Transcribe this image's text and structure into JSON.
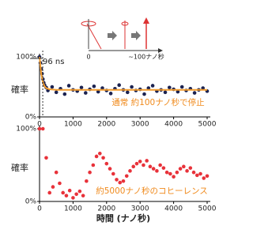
{
  "chart_data": [
    {
      "type": "scatter",
      "ylabel": "確率",
      "note": "通常 約100ナノ秒で停止",
      "note_color": "#f08a1c",
      "marker": {
        "value": 96,
        "label": "96 ns"
      },
      "inset": {
        "labels": [
          "0",
          "~100ナノ秒"
        ]
      },
      "xlim": [
        0,
        5000
      ],
      "xticks": [
        0,
        1000,
        2000,
        3000,
        4000,
        5000
      ],
      "ylim": [
        0,
        100
      ],
      "yticks": [
        {
          "value": 0,
          "label": "0%"
        },
        {
          "value": 100,
          "label": "100%"
        }
      ],
      "series": [
        {
          "type": "scatter",
          "color": "#1b2250",
          "x": [
            0,
            25,
            50,
            75,
            100,
            125,
            150,
            200,
            250,
            375,
            500,
            625,
            750,
            875,
            1000,
            1125,
            1250,
            1375,
            1500,
            1625,
            1750,
            1875,
            2000,
            2125,
            2250,
            2375,
            2500,
            2625,
            2750,
            2875,
            3000,
            3125,
            3250,
            3375,
            3500,
            3625,
            3750,
            3875,
            4000,
            4125,
            4250,
            4375,
            4500,
            4625,
            4750,
            4875,
            5000
          ],
          "values": [
            100,
            90,
            80,
            72,
            63,
            57,
            53,
            49,
            44,
            50,
            41,
            47,
            38,
            52,
            45,
            43,
            49,
            40,
            46,
            51,
            42,
            48,
            44,
            39,
            47,
            53,
            45,
            41,
            50,
            44,
            46,
            38,
            48,
            52,
            43,
            45,
            41,
            49,
            46,
            42,
            50,
            44,
            47,
            40,
            45,
            48,
            43
          ]
        },
        {
          "type": "line",
          "color": "#f39c2c",
          "x": [
            0,
            50,
            100,
            150,
            200,
            300,
            500,
            1000,
            5000
          ],
          "values": [
            100,
            72,
            58,
            51,
            48,
            46,
            45,
            45,
            45
          ]
        }
      ]
    },
    {
      "type": "scatter",
      "ylabel": "確率",
      "xlabel": "時間 (ナノ秒)",
      "note": "約5000ナノ秒のコヒーレンス",
      "note_color": "#f08a1c",
      "xlim": [
        0,
        5000
      ],
      "xticks": [
        0,
        1000,
        2000,
        3000,
        4000,
        5000
      ],
      "ylim": [
        0,
        100
      ],
      "yticks": [
        {
          "value": 0,
          "label": "0%"
        },
        {
          "value": 100,
          "label": "100%"
        }
      ],
      "series": [
        {
          "type": "scatter",
          "color": "#e8323a",
          "x": [
            0,
            100,
            200,
            300,
            400,
            500,
            600,
            700,
            800,
            900,
            1000,
            1100,
            1200,
            1300,
            1400,
            1500,
            1600,
            1700,
            1800,
            1900,
            2000,
            2100,
            2200,
            2300,
            2400,
            2500,
            2600,
            2700,
            2800,
            2900,
            3000,
            3100,
            3200,
            3300,
            3400,
            3500,
            3600,
            3700,
            3800,
            3900,
            4000,
            4100,
            4200,
            4300,
            4400,
            4500,
            4600,
            4700,
            4800,
            4900,
            5000
          ],
          "values": [
            100,
            100,
            60,
            12,
            20,
            40,
            25,
            12,
            8,
            15,
            5,
            10,
            14,
            8,
            28,
            40,
            50,
            62,
            66,
            60,
            52,
            45,
            38,
            30,
            26,
            28,
            35,
            42,
            48,
            52,
            55,
            50,
            56,
            48,
            45,
            42,
            50,
            46,
            40,
            38,
            34,
            40,
            45,
            48,
            42,
            46,
            40,
            36,
            38,
            32,
            35
          ]
        }
      ]
    }
  ]
}
